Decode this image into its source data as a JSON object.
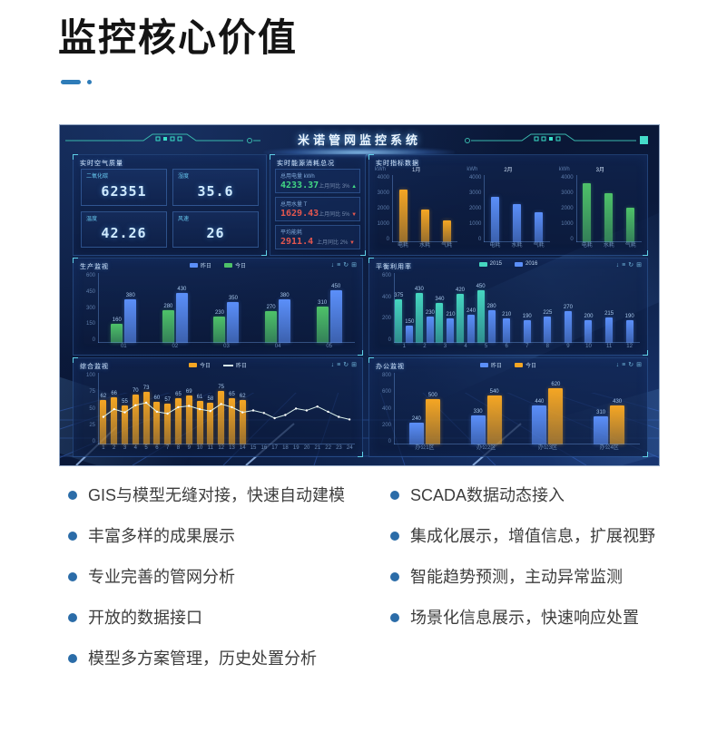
{
  "page": {
    "title": "监控核心价值"
  },
  "features": {
    "left": [
      "GIS与模型无缝对接，快速自动建模",
      "丰富多样的成果展示",
      "专业完善的管网分析",
      "开放的数据接口",
      "模型多方案管理，历史处置分析"
    ],
    "right": [
      "SCADA数据动态接入",
      "集成化展示，增值信息，扩展视野",
      "智能趋势预测，主动异常监测",
      "场景化信息展示，快速响应处置"
    ]
  },
  "colors": {
    "bullet": "#2b6ca8",
    "orange": "#f5a623",
    "blue": "#5b8ff9",
    "green": "#4ec269",
    "teal": "#45d6c0",
    "line": "#d8efe9",
    "red": "#e4574f",
    "green_text": "#42d885",
    "cyan": "#59d2f5"
  },
  "dashboard": {
    "title": "米诺管网监控系统",
    "toolbar_icons": [
      "↓",
      "≡",
      "↻",
      "⊞"
    ],
    "air_quality": {
      "title": "实时空气质量",
      "stats": [
        {
          "label": "二氧化碳",
          "value": "62351"
        },
        {
          "label": "湿度",
          "value": "35.6"
        },
        {
          "label": "温度",
          "value": "42.26"
        },
        {
          "label": "风速",
          "value": "26"
        }
      ]
    },
    "energy": {
      "title": "实时能源消耗总况",
      "rows": [
        {
          "label": "总用电量 kWh",
          "value": "4233.37",
          "c": "green_text",
          "note": "上月同比 3%",
          "arrow": "▲"
        },
        {
          "label": "总用水量 T",
          "value": "1629.43",
          "c": "red",
          "note": "上月同比 5%",
          "arrow": "▼"
        },
        {
          "label": "平均能耗",
          "value": "2911.4",
          "c": "red",
          "note": "上月同比 2%",
          "arrow": "▼"
        }
      ]
    },
    "metrics": {
      "title": "实时指标数据",
      "unit": "kWh",
      "ymax": 4000,
      "yticks": [
        "4000",
        "3000",
        "2000",
        "1000",
        "0"
      ],
      "charts": [
        {
          "month": "1月",
          "color": "orange",
          "labels": [
            "电耗",
            "水耗",
            "气耗"
          ],
          "values": [
            3100,
            1900,
            1300
          ]
        },
        {
          "month": "2月",
          "color": "blue",
          "labels": [
            "电耗",
            "水耗",
            "气耗"
          ],
          "values": [
            2700,
            2300,
            1750
          ]
        },
        {
          "month": "3月",
          "color": "green",
          "labels": [
            "电耗",
            "水耗",
            "气耗"
          ],
          "values": [
            3500,
            2900,
            2050
          ]
        }
      ]
    },
    "production": {
      "title": "生产监视",
      "ymax": 600,
      "yticks": [
        "600",
        "450",
        "300",
        "150",
        "0"
      ],
      "legend": [
        {
          "label": "昨日",
          "c": "blue"
        },
        {
          "label": "今日",
          "c": "green"
        }
      ],
      "xlabels": [
        "01",
        "02",
        "03",
        "04",
        "05"
      ],
      "groups": [
        [
          {
            "v": 160,
            "c": "green"
          },
          {
            "v": 380,
            "c": "blue"
          }
        ],
        [
          {
            "v": 280,
            "c": "green"
          },
          {
            "v": 430,
            "c": "blue"
          }
        ],
        [
          {
            "v": 230,
            "c": "green"
          },
          {
            "v": 350,
            "c": "blue"
          }
        ],
        [
          {
            "v": 270,
            "c": "green"
          },
          {
            "v": 380,
            "c": "blue"
          }
        ],
        [
          {
            "v": 310,
            "c": "green"
          },
          {
            "v": 450,
            "c": "blue"
          }
        ]
      ]
    },
    "balance": {
      "title": "平衡利用率",
      "ymax": 600,
      "yticks": [
        "600",
        "400",
        "200",
        "0"
      ],
      "legend": [
        {
          "label": "2015",
          "c": "teal"
        },
        {
          "label": "2016",
          "c": "blue"
        }
      ],
      "xlabels": [
        "1",
        "2",
        "3",
        "4",
        "5",
        "6",
        "7",
        "8",
        "9",
        "10",
        "11",
        "12"
      ],
      "groups": [
        [
          {
            "v": 375,
            "c": "teal"
          },
          {
            "v": 150,
            "c": "blue"
          }
        ],
        [
          {
            "v": 430,
            "c": "teal"
          },
          {
            "v": 230,
            "c": "blue"
          }
        ],
        [
          {
            "v": 340,
            "c": "teal"
          },
          {
            "v": 210,
            "c": "blue"
          }
        ],
        [
          {
            "v": 420,
            "c": "teal"
          },
          {
            "v": 240,
            "c": "blue"
          }
        ],
        [
          {
            "v": 450,
            "c": "teal"
          },
          {
            "v": 280,
            "c": "blue"
          }
        ],
        [
          {
            "v": 210,
            "c": "blue"
          }
        ],
        [
          {
            "v": 190,
            "c": "blue"
          }
        ],
        [
          {
            "v": 225,
            "c": "blue"
          }
        ],
        [
          {
            "v": 270,
            "c": "blue"
          }
        ],
        [
          {
            "v": 200,
            "c": "blue"
          }
        ],
        [
          {
            "v": 215,
            "c": "blue"
          }
        ],
        [
          {
            "v": 190,
            "c": "blue"
          }
        ]
      ]
    },
    "composite": {
      "title": "综合监视",
      "ymax": 100,
      "yticks": [
        "100",
        "75",
        "50",
        "25",
        "0"
      ],
      "legend": [
        {
          "label": "今日",
          "c": "orange"
        },
        {
          "label": "昨日",
          "c": "line",
          "type": "line"
        }
      ],
      "xlabels": [
        "1",
        "2",
        "3",
        "4",
        "5",
        "6",
        "7",
        "8",
        "9",
        "10",
        "11",
        "12",
        "13",
        "14",
        "15",
        "16",
        "17",
        "18",
        "19",
        "20",
        "21",
        "22",
        "23",
        "24"
      ],
      "bars": [
        62,
        66,
        55,
        70,
        73,
        60,
        57,
        65,
        69,
        61,
        58,
        75,
        65,
        62
      ],
      "line": [
        40,
        52,
        47,
        58,
        62,
        48,
        45,
        55,
        57,
        52,
        49,
        60,
        55,
        47,
        50,
        46,
        38,
        43,
        53,
        50,
        56,
        48,
        40,
        36
      ]
    },
    "office": {
      "title": "办公监视",
      "ymax": 800,
      "yticks": [
        "800",
        "600",
        "400",
        "200",
        "0"
      ],
      "legend": [
        {
          "label": "昨日",
          "c": "blue"
        },
        {
          "label": "今日",
          "c": "orange"
        }
      ],
      "xlabels": [
        "办公1区",
        "办公2区",
        "办公3区",
        "办公4区"
      ],
      "groups": [
        [
          {
            "v": 240,
            "c": "blue"
          },
          {
            "v": 500,
            "c": "orange"
          }
        ],
        [
          {
            "v": 330,
            "c": "blue"
          },
          {
            "v": 540,
            "c": "orange"
          }
        ],
        [
          {
            "v": 440,
            "c": "blue"
          },
          {
            "v": 620,
            "c": "orange"
          }
        ],
        [
          {
            "v": 310,
            "c": "blue"
          },
          {
            "v": 430,
            "c": "orange"
          }
        ]
      ]
    }
  }
}
